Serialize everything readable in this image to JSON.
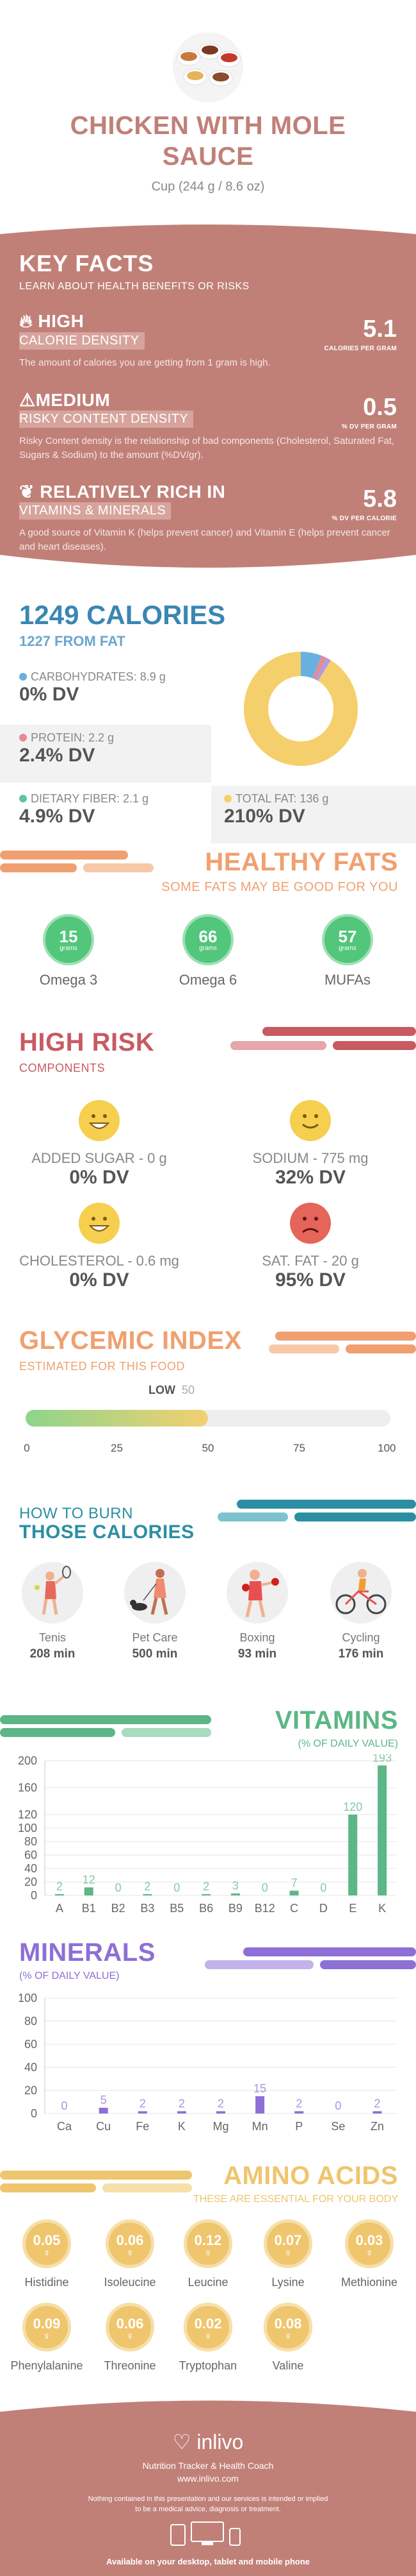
{
  "header": {
    "title_line1": "CHICKEN WITH MOLE",
    "title_line2": "SAUCE",
    "serving": "Cup (244 g / 8.6 oz)"
  },
  "key_facts": {
    "title": "KEY FACTS",
    "subtitle": "LEARN ABOUT HEALTH BENEFITS OR RISKS",
    "items": [
      {
        "level": "HIGH",
        "label": "CALORIE DENSITY",
        "value": "5.1",
        "unit": "CALORIES PER GRAM",
        "desc": "The amount of calories you are getting from 1 gram is high."
      },
      {
        "level": "MEDIUM",
        "label": "RISKY CONTENT DENSITY",
        "value": "0.5",
        "unit": "% DV PER GRAM",
        "desc": "Risky Content density is the relationship of bad components (Cholesterol, Saturated Fat, Sugars & Sodium) to the amount (%DV/gr)."
      },
      {
        "level": "RELATIVELY RICH  IN",
        "label": "VITAMINS & MINERALS",
        "value": "5.8",
        "unit": "% DV PER CALORIE",
        "desc": "A good source of Vitamin K (helps prevent cancer) and Vitamin E (helps prevent cancer and heart diseases)."
      }
    ]
  },
  "calories": {
    "title": "1249 CALORIES",
    "subtitle": "1227 FROM FAT",
    "macros": [
      {
        "name": "CARBOHYDRATES: 8.9 g",
        "dv": "0% DV",
        "color": "#6ab0de"
      },
      {
        "name": "PROTEIN: 2.2 g",
        "dv": "2.4% DV",
        "color": "#e58a92"
      },
      {
        "name": "DIETARY FIBER: 2.1 g",
        "dv": "4.9% DV",
        "color": "#5ec6a0"
      },
      {
        "name": "TOTAL FAT: 136 g",
        "dv": "210% DV",
        "color": "#f5cf6b"
      }
    ],
    "donut": [
      {
        "name": "carbohydrates",
        "grams": 8.9,
        "color": "#6ab0de"
      },
      {
        "name": "protein",
        "grams": 2.2,
        "color": "#e58a92"
      },
      {
        "name": "fiber",
        "grams": 2.1,
        "color": "#b29be0"
      },
      {
        "name": "fat",
        "grams": 136,
        "color": "#f5cf6b"
      }
    ]
  },
  "fats": {
    "title": "HEALTHY FATS",
    "subtitle": "SOME FATS MAY BE GOOD FOR YOU",
    "unit": "grams",
    "items": [
      {
        "value": "15",
        "name": "Omega 3"
      },
      {
        "value": "66",
        "name": "Omega 6"
      },
      {
        "value": "57",
        "name": "MUFAs"
      }
    ]
  },
  "risk": {
    "title": "HIGH RISK",
    "subtitle": "COMPONENTS",
    "items": [
      {
        "name": "ADDED SUGAR - 0 g",
        "dv": "0% DV",
        "face": "happy",
        "color": "#f5cf4d"
      },
      {
        "name": "SODIUM - 775 mg",
        "dv": "32% DV",
        "face": "smile",
        "color": "#f5cf4d"
      },
      {
        "name": "CHOLESTEROL - 0.6 mg",
        "dv": "0% DV",
        "face": "happy",
        "color": "#f5cf4d"
      },
      {
        "name": "SAT. FAT - 20 g",
        "dv": "95% DV",
        "face": "sad",
        "color": "#e5655a"
      }
    ]
  },
  "glycemic": {
    "title": "GLYCEMIC INDEX",
    "subtitle": "ESTIMATED FOR THIS FOOD",
    "level": "LOW",
    "value": "50",
    "value_num": 50,
    "ticks": [
      "0",
      "25",
      "50",
      "75",
      "100"
    ]
  },
  "burn": {
    "title1": "HOW TO BURN",
    "title2": "THOSE CALORIES",
    "items": [
      {
        "name": "Tenis",
        "minutes": "208 min",
        "icon": "tennis-icon"
      },
      {
        "name": "Pet Care",
        "minutes": "500 min",
        "icon": "pet-care-icon"
      },
      {
        "name": "Boxing",
        "minutes": "93 min",
        "icon": "boxing-icon"
      },
      {
        "name": "Cycling",
        "minutes": "176 min",
        "icon": "cycling-icon"
      }
    ]
  },
  "vitamins": {
    "title": "VITAMINS",
    "subtitle": "(% OF DAILY VALUE)"
  },
  "minerals": {
    "title": "MINERALS",
    "subtitle": "(% OF DAILY VALUE)"
  },
  "chart_data": [
    {
      "type": "bar",
      "title": "VITAMINS",
      "subtitle": "(% OF DAILY VALUE)",
      "categories": [
        "A",
        "B1",
        "B2",
        "B3",
        "B5",
        "B6",
        "B9",
        "B12",
        "C",
        "D",
        "E",
        "K"
      ],
      "values": [
        2,
        12,
        0,
        2,
        0,
        2,
        3,
        0,
        7,
        0,
        120,
        193
      ],
      "labels": [
        "2",
        "12",
        "0",
        "2",
        "0",
        "2",
        "3",
        "0",
        "7",
        "0",
        "120",
        "193"
      ],
      "yticks": [
        "0",
        "20",
        "40",
        "60",
        "80",
        "100",
        "120",
        "160",
        "200"
      ],
      "ylim": [
        0,
        200
      ],
      "color": "#5cb685"
    },
    {
      "type": "bar",
      "title": "MINERALS",
      "subtitle": "(% OF DAILY VALUE)",
      "categories": [
        "Ca",
        "Cu",
        "Fe",
        "K",
        "Mg",
        "Mn",
        "P",
        "Se",
        "Zn"
      ],
      "values": [
        0,
        5,
        2,
        2,
        2,
        15,
        2,
        0,
        2
      ],
      "labels": [
        "0",
        "5",
        "2",
        "2",
        "2",
        "15",
        "2",
        "0",
        "2"
      ],
      "yticks": [
        "0",
        "20",
        "40",
        "60",
        "80",
        "100"
      ],
      "ylim": [
        0,
        100
      ],
      "color": "#8d6fd6"
    }
  ],
  "amino": {
    "title": "AMINO ACIDS",
    "subtitle": "THESE ARE ESSENTIAL FOR YOUR BODY",
    "unit": "g",
    "items": [
      {
        "value": "0.05",
        "name": "Histidine"
      },
      {
        "value": "0.06",
        "name": "Isoleucine"
      },
      {
        "value": "0.12",
        "name": "Leucine"
      },
      {
        "value": "0.07",
        "name": "Lysine"
      },
      {
        "value": "0.03",
        "name": "Methionine"
      },
      {
        "value": "0.09",
        "name": "Phenylalanine"
      },
      {
        "value": "0.06",
        "name": "Threonine"
      },
      {
        "value": "0.02",
        "name": "Tryptophan"
      },
      {
        "value": "0.08",
        "name": "Valine"
      }
    ]
  },
  "footer": {
    "brand": "inlivo",
    "tagline": "Nutrition Tracker & Health Coach",
    "url": "www.inlivo.com",
    "disclaimer1": "Nothing contained in this presentation and our services is intended or implied",
    "disclaimer2": "to be a medical advice, diagnosis or treatment.",
    "available": "Available on your desktop, tablet and mobile phone"
  },
  "colors": {
    "rose": "#c08078",
    "blue": "#3a86b4",
    "orange": "#f0a070",
    "teal": "#2b8fa3",
    "green": "#5cb685",
    "purple": "#8d6fd6",
    "gold": "#efc56e"
  }
}
